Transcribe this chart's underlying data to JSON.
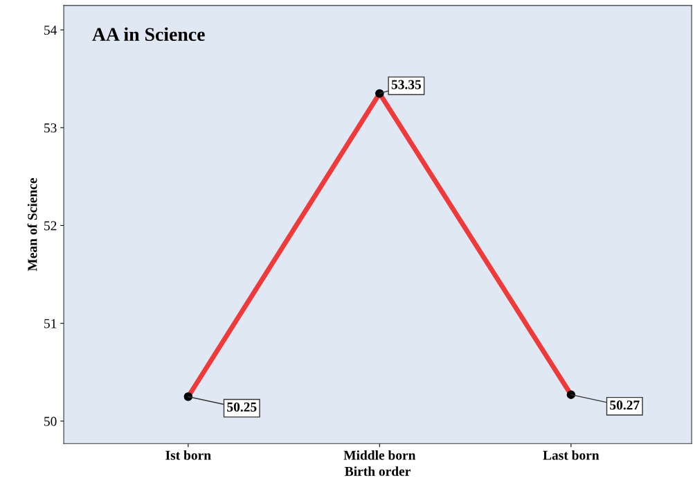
{
  "chart_data": {
    "type": "line",
    "title": "AA in Science",
    "xlabel": "Birth order",
    "ylabel": "Mean of Science",
    "categories": [
      "Ist born",
      "Middle born",
      "Last born"
    ],
    "series": [
      {
        "color": "#ee3a3a",
        "values": [
          50.25,
          53.35,
          50.27
        ]
      }
    ],
    "ylim": [
      49.77,
      54.25
    ],
    "yticks": [
      50,
      51,
      52,
      53,
      54
    ],
    "grid": false,
    "legend": false,
    "marker": "circle",
    "line_style": "solid",
    "data_labels": true
  }
}
